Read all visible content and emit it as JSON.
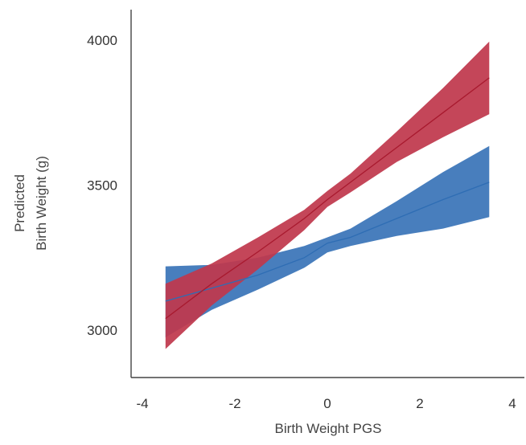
{
  "chart_data": {
    "type": "line",
    "title": "",
    "xlabel": "Birth Weight PGS",
    "ylabel_lines": [
      "Predicted",
      "Birth Weight (g)"
    ],
    "xlim": [
      -4,
      4
    ],
    "ylim": [
      2850,
      4100
    ],
    "xticks": [
      -4,
      -2,
      0,
      2,
      4
    ],
    "yticks": [
      3000,
      3500,
      4000
    ],
    "grid": false,
    "legend": "none",
    "series": [
      {
        "color": "#2e6db4",
        "band_color": "#3a74b8",
        "x": [
          -3.5,
          -2.5,
          -1.5,
          -0.5,
          0,
          0.5,
          1.5,
          2.5,
          3.5
        ],
        "y": [
          3100,
          3145,
          3190,
          3250,
          3300,
          3320,
          3385,
          3450,
          3510
        ],
        "lower": [
          2975,
          3070,
          3140,
          3215,
          3268,
          3290,
          3325,
          3350,
          3390
        ],
        "upper": [
          3220,
          3225,
          3250,
          3290,
          3320,
          3350,
          3445,
          3545,
          3635
        ]
      },
      {
        "color": "#a8192e",
        "band_color": "#c0384c",
        "x": [
          -3.5,
          -2.5,
          -1.5,
          -0.5,
          0,
          0.5,
          1.5,
          2.5,
          3.5
        ],
        "y": [
          3040,
          3160,
          3270,
          3385,
          3450,
          3510,
          3630,
          3750,
          3870
        ],
        "lower": [
          2935,
          3085,
          3210,
          3345,
          3425,
          3475,
          3580,
          3665,
          3745
        ],
        "upper": [
          3160,
          3230,
          3320,
          3415,
          3480,
          3540,
          3685,
          3835,
          3995
        ]
      }
    ]
  }
}
